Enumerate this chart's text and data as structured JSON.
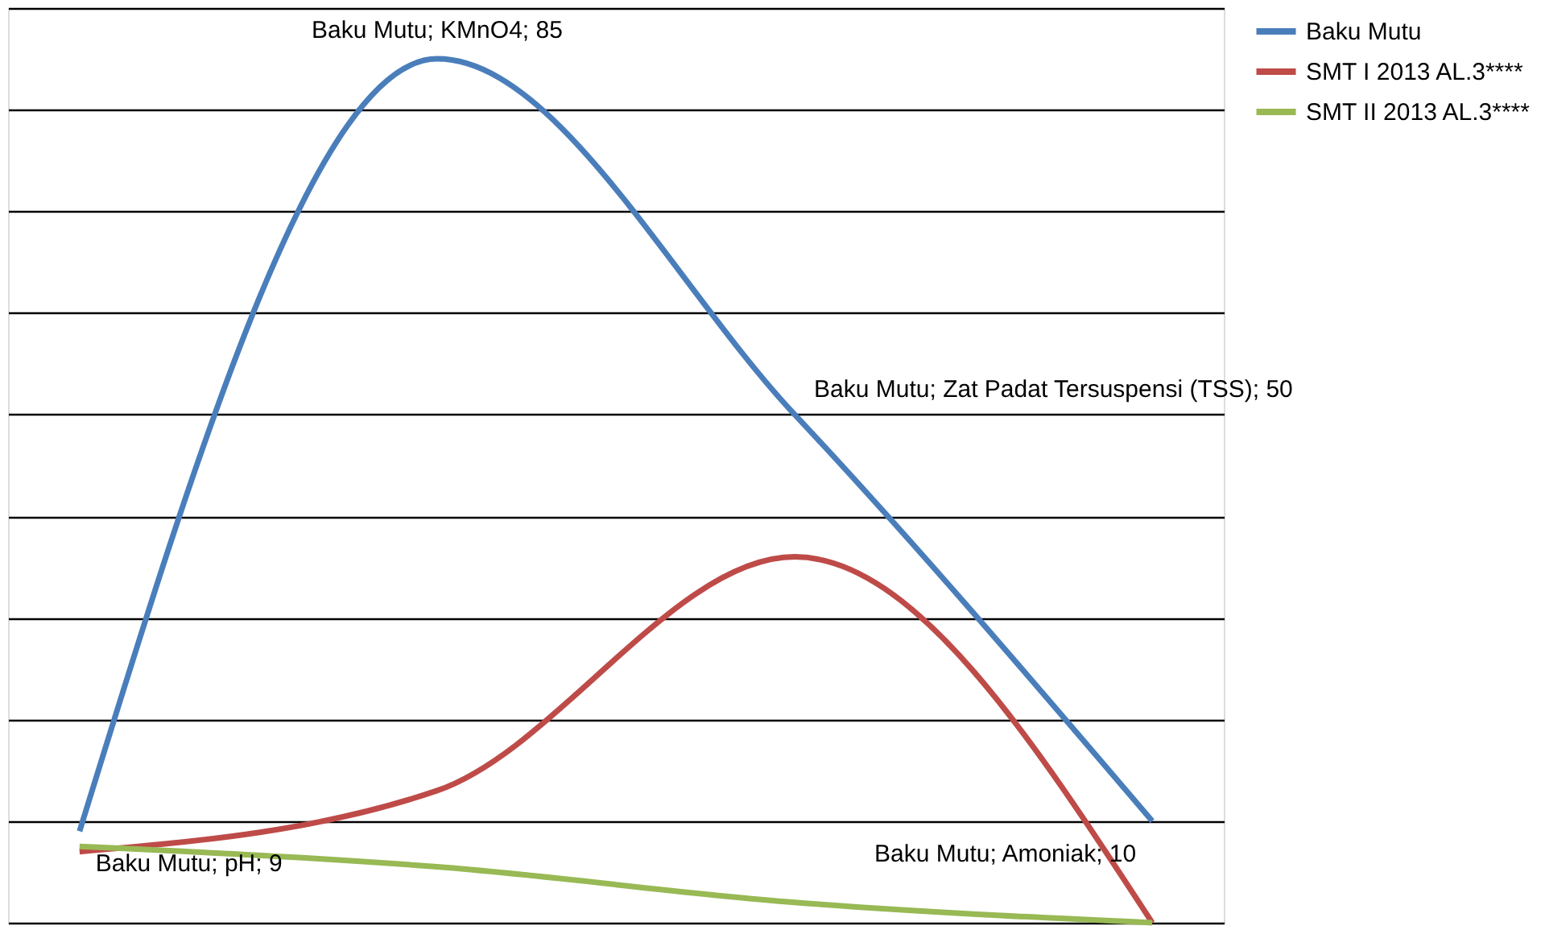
{
  "chart_data": {
    "type": "line",
    "categories": [
      null,
      null,
      null,
      null
    ],
    "series": [
      {
        "name": "Baku Mutu",
        "color": "#4a7ebb",
        "values": [
          9,
          85,
          50,
          10
        ],
        "value_labels": [
          "Baku Mutu; pH; 9",
          "Baku Mutu; KMnO4; 85",
          "Baku Mutu; Zat Padat Tersuspensi (TSS); 50",
          "Baku Mutu; Amoniak; 10"
        ]
      },
      {
        "name": "SMT I 2013 AL.3****",
        "color": "#be4b48",
        "values": [
          7,
          13,
          36,
          0
        ]
      },
      {
        "name": "SMT II 2013 AL.3****",
        "color": "#98b954",
        "values": [
          7.5,
          5.5,
          2,
          0
        ]
      }
    ],
    "ylim": [
      0,
      90
    ],
    "yticks": [
      0,
      10,
      20,
      30,
      40,
      50,
      60,
      70,
      80,
      90
    ],
    "grid": "y",
    "legend": "right",
    "tick_labels": false,
    "marker": "none",
    "line_style": "solid"
  }
}
